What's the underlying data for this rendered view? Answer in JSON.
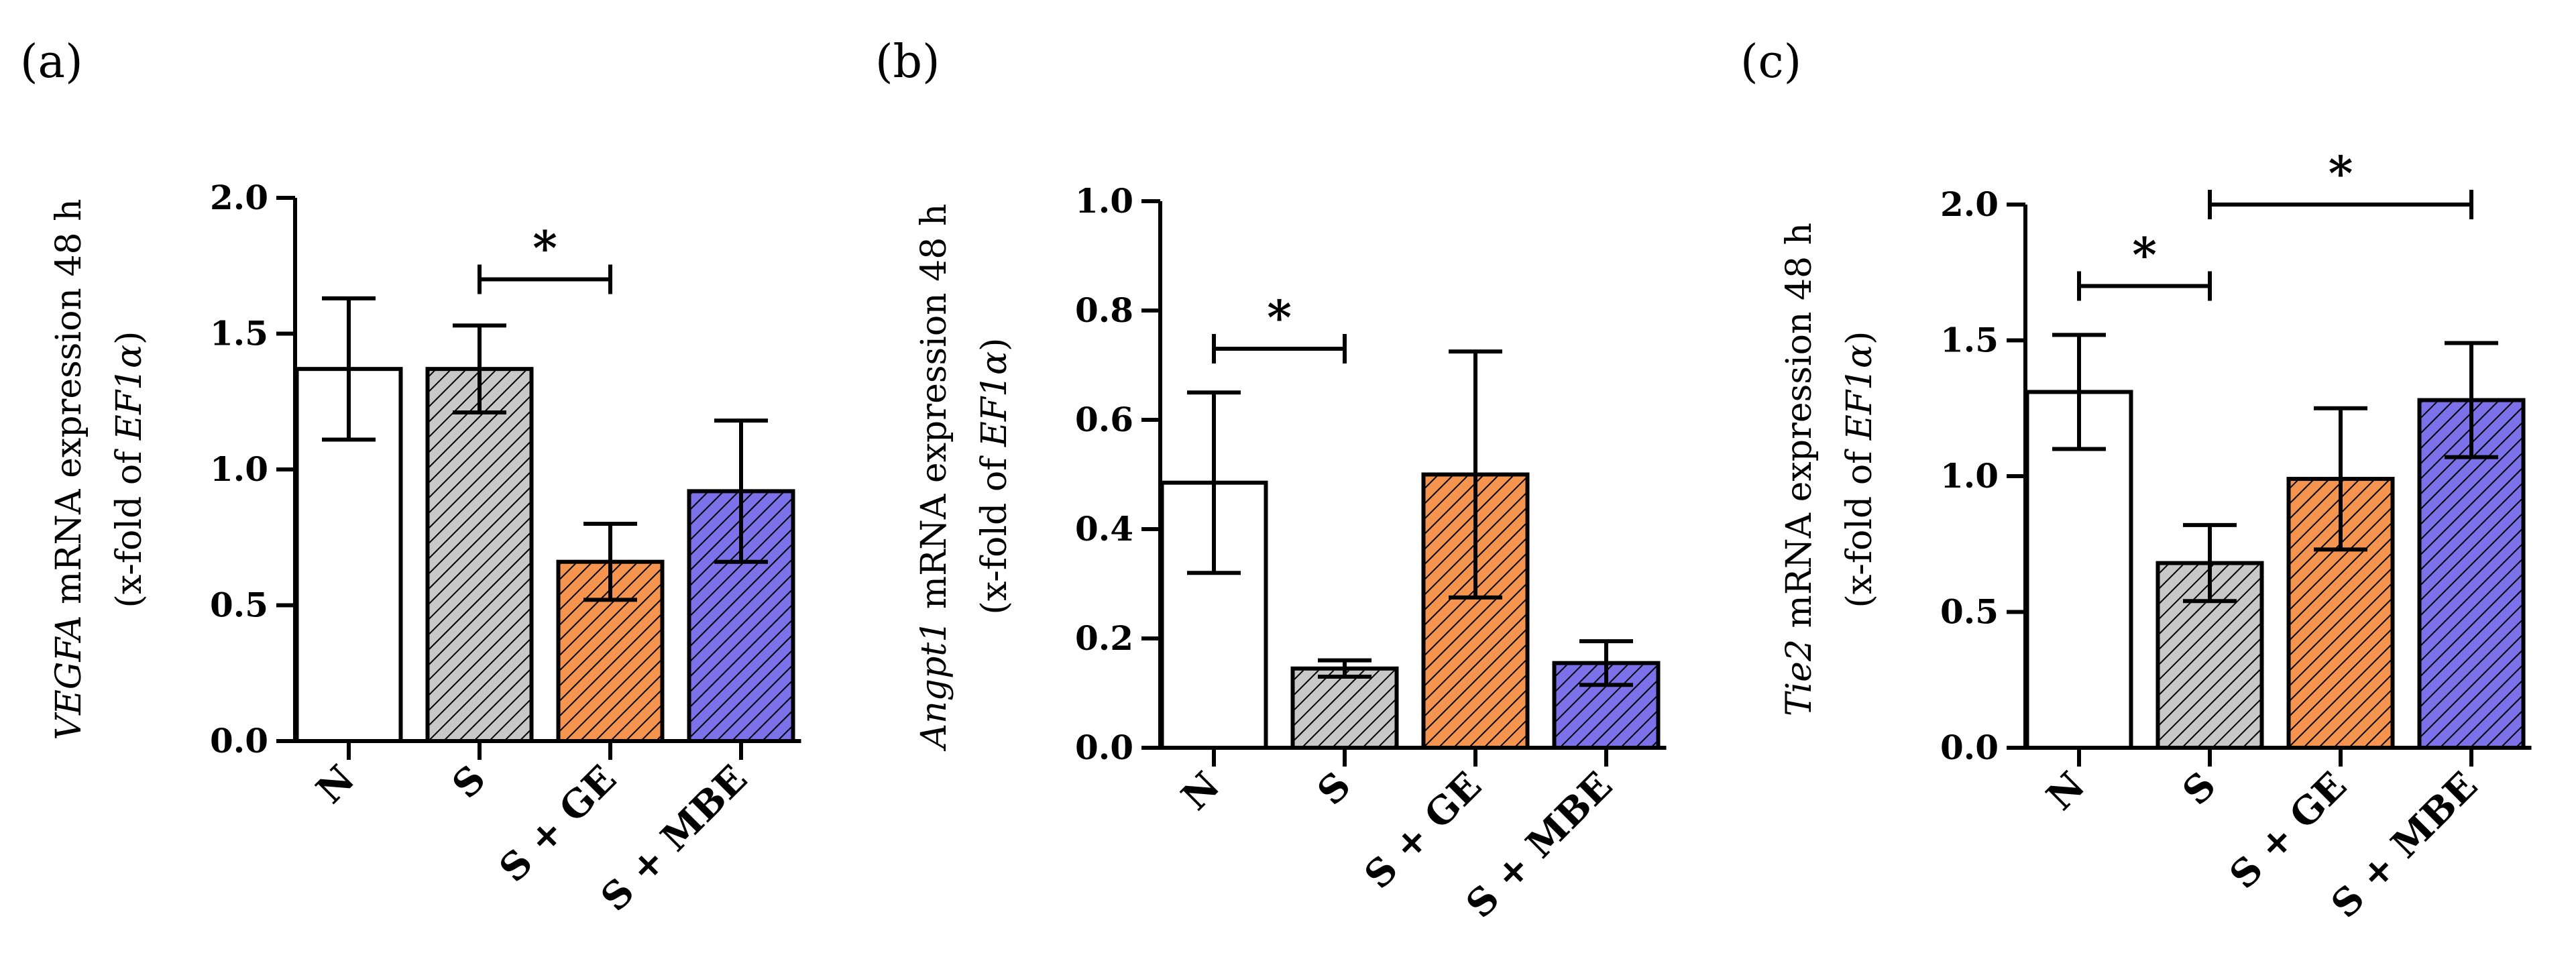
{
  "chart_data": [
    {
      "type": "bar",
      "panel_label": "(a)",
      "ylabel_gene": "VEGFA",
      "ylabel_text": " mRNA expression 48 h",
      "ylabel_line2_prefix": "(x-fold of ",
      "ylabel_line2_ref": "EF1α",
      "ylabel_line2_suffix": ")",
      "categories": [
        "N",
        "S",
        "S + GE",
        "S + MBE"
      ],
      "values": [
        1.37,
        1.37,
        0.66,
        0.92
      ],
      "errors": [
        0.26,
        0.16,
        0.14,
        0.26
      ],
      "ylim": [
        0,
        2.0
      ],
      "yticks": [
        "0.0",
        "0.5",
        "1.0",
        "1.5",
        "2.0"
      ],
      "significance": [
        {
          "from": 1,
          "to": 2,
          "y": 1.7,
          "label": "*"
        }
      ]
    },
    {
      "type": "bar",
      "panel_label": "(b)",
      "ylabel_gene": "Angpt1",
      "ylabel_text": " mRNA expression 48 h",
      "ylabel_line2_prefix": "(x-fold of ",
      "ylabel_line2_ref": "EF1α",
      "ylabel_line2_suffix": ")",
      "categories": [
        "N",
        "S",
        "S + GE",
        "S + MBE"
      ],
      "values": [
        0.485,
        0.145,
        0.5,
        0.155
      ],
      "errors": [
        0.165,
        0.015,
        0.225,
        0.04
      ],
      "ylim": [
        0,
        1.0
      ],
      "yticks": [
        "0.0",
        "0.2",
        "0.4",
        "0.6",
        "0.8",
        "1.0"
      ],
      "significance": [
        {
          "from": 0,
          "to": 1,
          "y": 0.73,
          "label": "*"
        }
      ]
    },
    {
      "type": "bar",
      "panel_label": "(c)",
      "ylabel_gene": "Tie2",
      "ylabel_text": " mRNA expression 48 h",
      "ylabel_line2_prefix": "(x-fold of ",
      "ylabel_line2_ref": "EF1α",
      "ylabel_line2_suffix": ")",
      "categories": [
        "N",
        "S",
        "S + GE",
        "S + MBE"
      ],
      "values": [
        1.31,
        0.68,
        0.99,
        1.28
      ],
      "errors": [
        0.21,
        0.14,
        0.26,
        0.21
      ],
      "ylim": [
        0,
        2.0
      ],
      "yticks": [
        "0.0",
        "0.5",
        "1.0",
        "1.5",
        "2.0"
      ],
      "significance": [
        {
          "from": 0,
          "to": 1,
          "y": 1.7,
          "label": "*"
        },
        {
          "from": 1,
          "to": 3,
          "y": 2.0,
          "label": "*"
        }
      ]
    }
  ],
  "bar_styles": [
    {
      "fill": "#ffffff",
      "hatch": false
    },
    {
      "fill": "#c8c8c8",
      "hatch": true
    },
    {
      "fill": "#f5944e",
      "hatch": true
    },
    {
      "fill": "#7b72ea",
      "hatch": true
    }
  ]
}
